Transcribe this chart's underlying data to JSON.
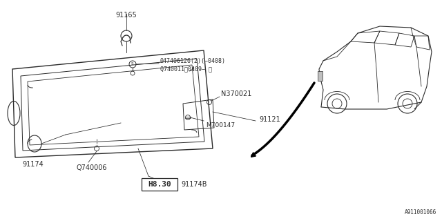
{
  "bg_color": "#ffffff",
  "lc": "#2a2a2a",
  "fs_small": 6,
  "fs_mid": 6.5,
  "fs_large": 7,
  "ref_text": "A911001066",
  "label_91165": "91165",
  "label_S": "S",
  "label_bolt1": "047406126(2)(−0408)",
  "label_bolt2": "Q740011（0409− ）",
  "label_N": "N370021",
  "label_M": "M700147",
  "label_91121": "91121",
  "label_91174": "91174",
  "label_Q740006": "Q740006",
  "label_H830": "H8.30",
  "label_91174B": "91174B"
}
